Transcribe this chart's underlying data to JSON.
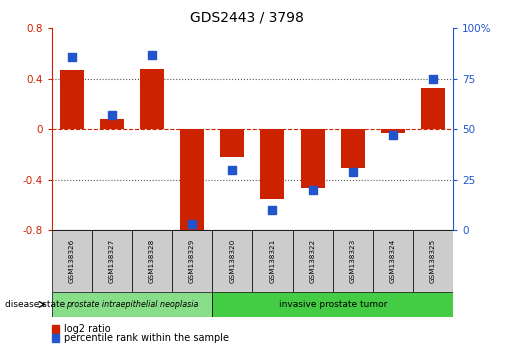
{
  "title": "GDS2443 / 3798",
  "samples": [
    "GSM138326",
    "GSM138327",
    "GSM138328",
    "GSM138329",
    "GSM138320",
    "GSM138321",
    "GSM138322",
    "GSM138323",
    "GSM138324",
    "GSM138325"
  ],
  "log2_ratio": [
    0.47,
    0.08,
    0.48,
    -0.82,
    -0.22,
    -0.55,
    -0.47,
    -0.31,
    -0.03,
    0.33
  ],
  "percentile_rank": [
    86,
    57,
    87,
    3,
    30,
    10,
    20,
    29,
    47,
    75
  ],
  "ylim_left": [
    -0.8,
    0.8
  ],
  "ylim_right": [
    0,
    100
  ],
  "yticks_left": [
    -0.8,
    -0.4,
    0.0,
    0.4,
    0.8
  ],
  "yticks_right": [
    0,
    25,
    50,
    75,
    100
  ],
  "bar_color": "#cc2200",
  "dot_color": "#2255cc",
  "hline_color": "#cc2200",
  "dotted_color": "#555555",
  "disease_groups": [
    {
      "label": "prostate intraepithelial neoplasia",
      "n_samples": 4,
      "color": "#88dd88"
    },
    {
      "label": "invasive prostate tumor",
      "n_samples": 6,
      "color": "#44cc44"
    }
  ],
  "disease_state_label": "disease state",
  "legend_items": [
    {
      "label": "log2 ratio",
      "color": "#cc2200"
    },
    {
      "label": "percentile rank within the sample",
      "color": "#2255cc"
    }
  ],
  "left_yaxis_color": "#cc2200",
  "right_yaxis_color": "#2255cc",
  "bar_width": 0.6,
  "dot_size": 40,
  "sample_box_color": "#cccccc",
  "bg_color": "#ffffff"
}
